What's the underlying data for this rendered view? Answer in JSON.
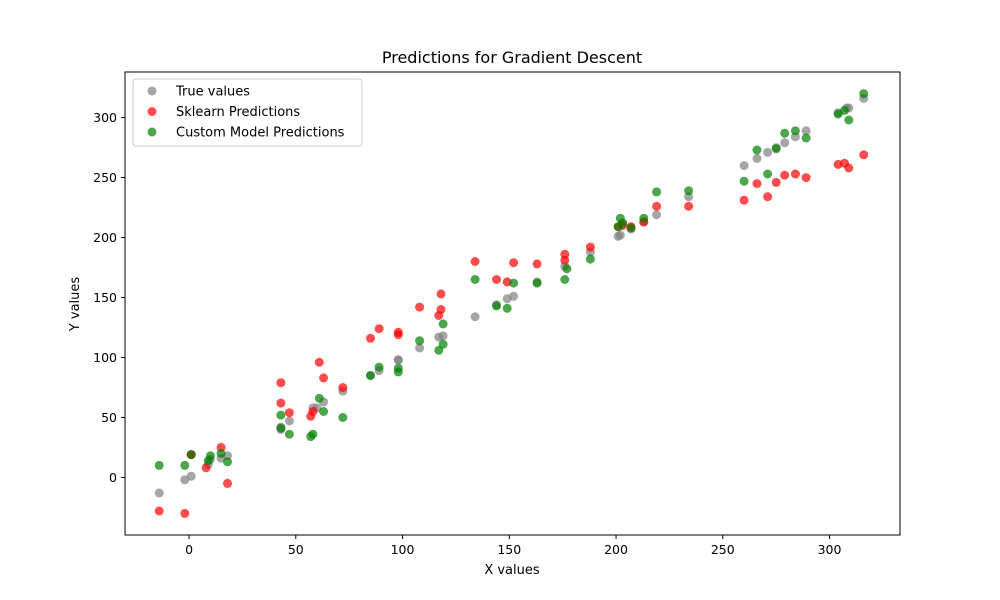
{
  "chart_data": {
    "type": "scatter",
    "title": "Predictions for Gradient Descent",
    "xlabel": "X values",
    "ylabel": "Y values",
    "xlim": [
      -30,
      333
    ],
    "ylim": [
      -48,
      338
    ],
    "xticks": [
      0,
      50,
      100,
      150,
      200,
      250,
      300
    ],
    "yticks": [
      0,
      50,
      100,
      150,
      200,
      250,
      300
    ],
    "grid": false,
    "legend_position": "top-left",
    "series": [
      {
        "name": "True values",
        "color": "#808080",
        "points": [
          [
            -14,
            -13
          ],
          [
            -2,
            -2
          ],
          [
            1,
            19
          ],
          [
            1,
            1
          ],
          [
            9,
            11
          ],
          [
            10,
            15
          ],
          [
            15,
            16
          ],
          [
            18,
            18
          ],
          [
            43,
            42
          ],
          [
            43,
            40
          ],
          [
            47,
            47
          ],
          [
            58,
            58
          ],
          [
            60,
            58
          ],
          [
            63,
            63
          ],
          [
            72,
            72
          ],
          [
            85,
            85
          ],
          [
            89,
            89
          ],
          [
            98,
            98
          ],
          [
            98,
            98
          ],
          [
            108,
            108
          ],
          [
            117,
            117
          ],
          [
            119,
            118
          ],
          [
            134,
            134
          ],
          [
            144,
            144
          ],
          [
            149,
            149
          ],
          [
            152,
            151
          ],
          [
            163,
            163
          ],
          [
            176,
            176
          ],
          [
            188,
            188
          ],
          [
            201,
            201
          ],
          [
            202,
            202
          ],
          [
            203,
            212
          ],
          [
            207,
            207
          ],
          [
            213,
            213
          ],
          [
            219,
            219
          ],
          [
            234,
            234
          ],
          [
            260,
            260
          ],
          [
            266,
            266
          ],
          [
            271,
            271
          ],
          [
            275,
            275
          ],
          [
            279,
            279
          ],
          [
            284,
            284
          ],
          [
            289,
            289
          ],
          [
            304,
            304
          ],
          [
            308,
            308
          ],
          [
            309,
            308
          ],
          [
            316,
            316
          ]
        ]
      },
      {
        "name": "Sklearn Predictions",
        "color": "#ff0000",
        "points": [
          [
            -14,
            -28
          ],
          [
            -2,
            -30
          ],
          [
            1,
            19
          ],
          [
            8,
            8
          ],
          [
            15,
            25
          ],
          [
            18,
            -5
          ],
          [
            43,
            79
          ],
          [
            43,
            62
          ],
          [
            47,
            54
          ],
          [
            57,
            51
          ],
          [
            58,
            55
          ],
          [
            61,
            96
          ],
          [
            63,
            83
          ],
          [
            72,
            75
          ],
          [
            85,
            116
          ],
          [
            89,
            124
          ],
          [
            98,
            119
          ],
          [
            98,
            121
          ],
          [
            108,
            142
          ],
          [
            117,
            135
          ],
          [
            118,
            153
          ],
          [
            118,
            140
          ],
          [
            134,
            180
          ],
          [
            144,
            165
          ],
          [
            149,
            163
          ],
          [
            152,
            179
          ],
          [
            163,
            178
          ],
          [
            176,
            181
          ],
          [
            176,
            186
          ],
          [
            188,
            192
          ],
          [
            201,
            209
          ],
          [
            203,
            210
          ],
          [
            207,
            209
          ],
          [
            213,
            213
          ],
          [
            219,
            226
          ],
          [
            234,
            226
          ],
          [
            260,
            231
          ],
          [
            266,
            245
          ],
          [
            271,
            234
          ],
          [
            275,
            246
          ],
          [
            279,
            252
          ],
          [
            284,
            253
          ],
          [
            289,
            250
          ],
          [
            304,
            261
          ],
          [
            307,
            262
          ],
          [
            309,
            258
          ],
          [
            316,
            269
          ]
        ]
      },
      {
        "name": "Custom Model Predictions",
        "color": "#008000",
        "points": [
          [
            -14,
            10
          ],
          [
            -2,
            10
          ],
          [
            1,
            19
          ],
          [
            9,
            14
          ],
          [
            10,
            18
          ],
          [
            15,
            20
          ],
          [
            18,
            13
          ],
          [
            43,
            52
          ],
          [
            43,
            41
          ],
          [
            47,
            36
          ],
          [
            57,
            34
          ],
          [
            58,
            36
          ],
          [
            61,
            66
          ],
          [
            63,
            55
          ],
          [
            72,
            50
          ],
          [
            85,
            85
          ],
          [
            89,
            92
          ],
          [
            98,
            88
          ],
          [
            98,
            91
          ],
          [
            108,
            114
          ],
          [
            117,
            106
          ],
          [
            119,
            128
          ],
          [
            119,
            111
          ],
          [
            134,
            165
          ],
          [
            144,
            143
          ],
          [
            149,
            141
          ],
          [
            152,
            162
          ],
          [
            163,
            162
          ],
          [
            176,
            165
          ],
          [
            177,
            174
          ],
          [
            188,
            182
          ],
          [
            201,
            209
          ],
          [
            202,
            216
          ],
          [
            203,
            212
          ],
          [
            207,
            208
          ],
          [
            213,
            216
          ],
          [
            219,
            238
          ],
          [
            234,
            239
          ],
          [
            260,
            247
          ],
          [
            266,
            273
          ],
          [
            271,
            253
          ],
          [
            275,
            274
          ],
          [
            279,
            287
          ],
          [
            284,
            289
          ],
          [
            289,
            283
          ],
          [
            304,
            303
          ],
          [
            307,
            306
          ],
          [
            309,
            298
          ],
          [
            316,
            320
          ]
        ]
      }
    ]
  }
}
